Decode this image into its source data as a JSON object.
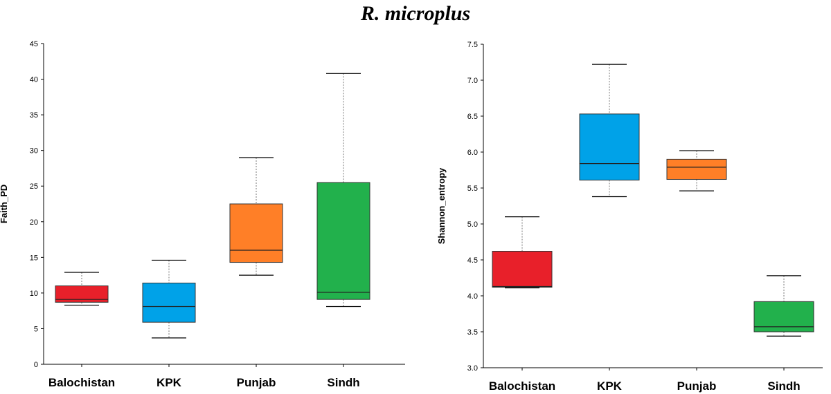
{
  "title": "R. microplus",
  "colors": {
    "Balochistan": "#e8202a",
    "KPK": "#00a2e8",
    "Punjab": "#ff7f27",
    "Sindh": "#22b14c"
  },
  "chart_data": [
    {
      "type": "boxplot",
      "title": "R. microplus",
      "ylabel": "Faith_PD",
      "xlabel": "",
      "ylim": [
        0,
        45
      ],
      "yticks": [
        0,
        5,
        10,
        15,
        20,
        25,
        30,
        35,
        40,
        45
      ],
      "ytick_labels": [
        "0",
        "5",
        "10",
        "15",
        "20",
        "25",
        "30",
        "35",
        "40",
        "45"
      ],
      "categories": [
        "Balochistan",
        "KPK",
        "Punjab",
        "Sindh"
      ],
      "boxes": [
        {
          "name": "Balochistan",
          "min": 8.3,
          "q1": 8.7,
          "median": 9.1,
          "q3": 11.0,
          "max": 12.9
        },
        {
          "name": "KPK",
          "min": 3.7,
          "q1": 5.9,
          "median": 8.1,
          "q3": 11.4,
          "max": 14.6
        },
        {
          "name": "Punjab",
          "min": 12.5,
          "q1": 14.3,
          "median": 16.0,
          "q3": 22.5,
          "max": 29.0
        },
        {
          "name": "Sindh",
          "min": 8.1,
          "q1": 9.1,
          "median": 10.1,
          "q3": 25.5,
          "max": 40.8
        }
      ]
    },
    {
      "type": "boxplot",
      "title": "R. microplus",
      "ylabel": "Shannon_entropy",
      "xlabel": "",
      "ylim": [
        3.0,
        7.5
      ],
      "yticks": [
        3.0,
        3.5,
        4.0,
        4.5,
        5.0,
        5.5,
        6.0,
        6.5,
        7.0,
        7.5
      ],
      "ytick_labels": [
        "3.0",
        "3.5",
        "4.0",
        "4.5",
        "5.0",
        "5.5",
        "6.0",
        "6.5",
        "7.0",
        "7.5"
      ],
      "categories": [
        "Balochistan",
        "KPK",
        "Punjab",
        "Sindh"
      ],
      "boxes": [
        {
          "name": "Balochistan",
          "min": 4.11,
          "q1": 4.12,
          "median": 4.13,
          "q3": 4.62,
          "max": 5.1
        },
        {
          "name": "KPK",
          "min": 5.38,
          "q1": 5.61,
          "median": 5.84,
          "q3": 6.53,
          "max": 7.22
        },
        {
          "name": "Punjab",
          "min": 5.46,
          "q1": 5.62,
          "median": 5.79,
          "q3": 5.9,
          "max": 6.02
        },
        {
          "name": "Sindh",
          "min": 3.44,
          "q1": 3.5,
          "median": 3.57,
          "q3": 3.92,
          "max": 4.28
        }
      ]
    }
  ]
}
